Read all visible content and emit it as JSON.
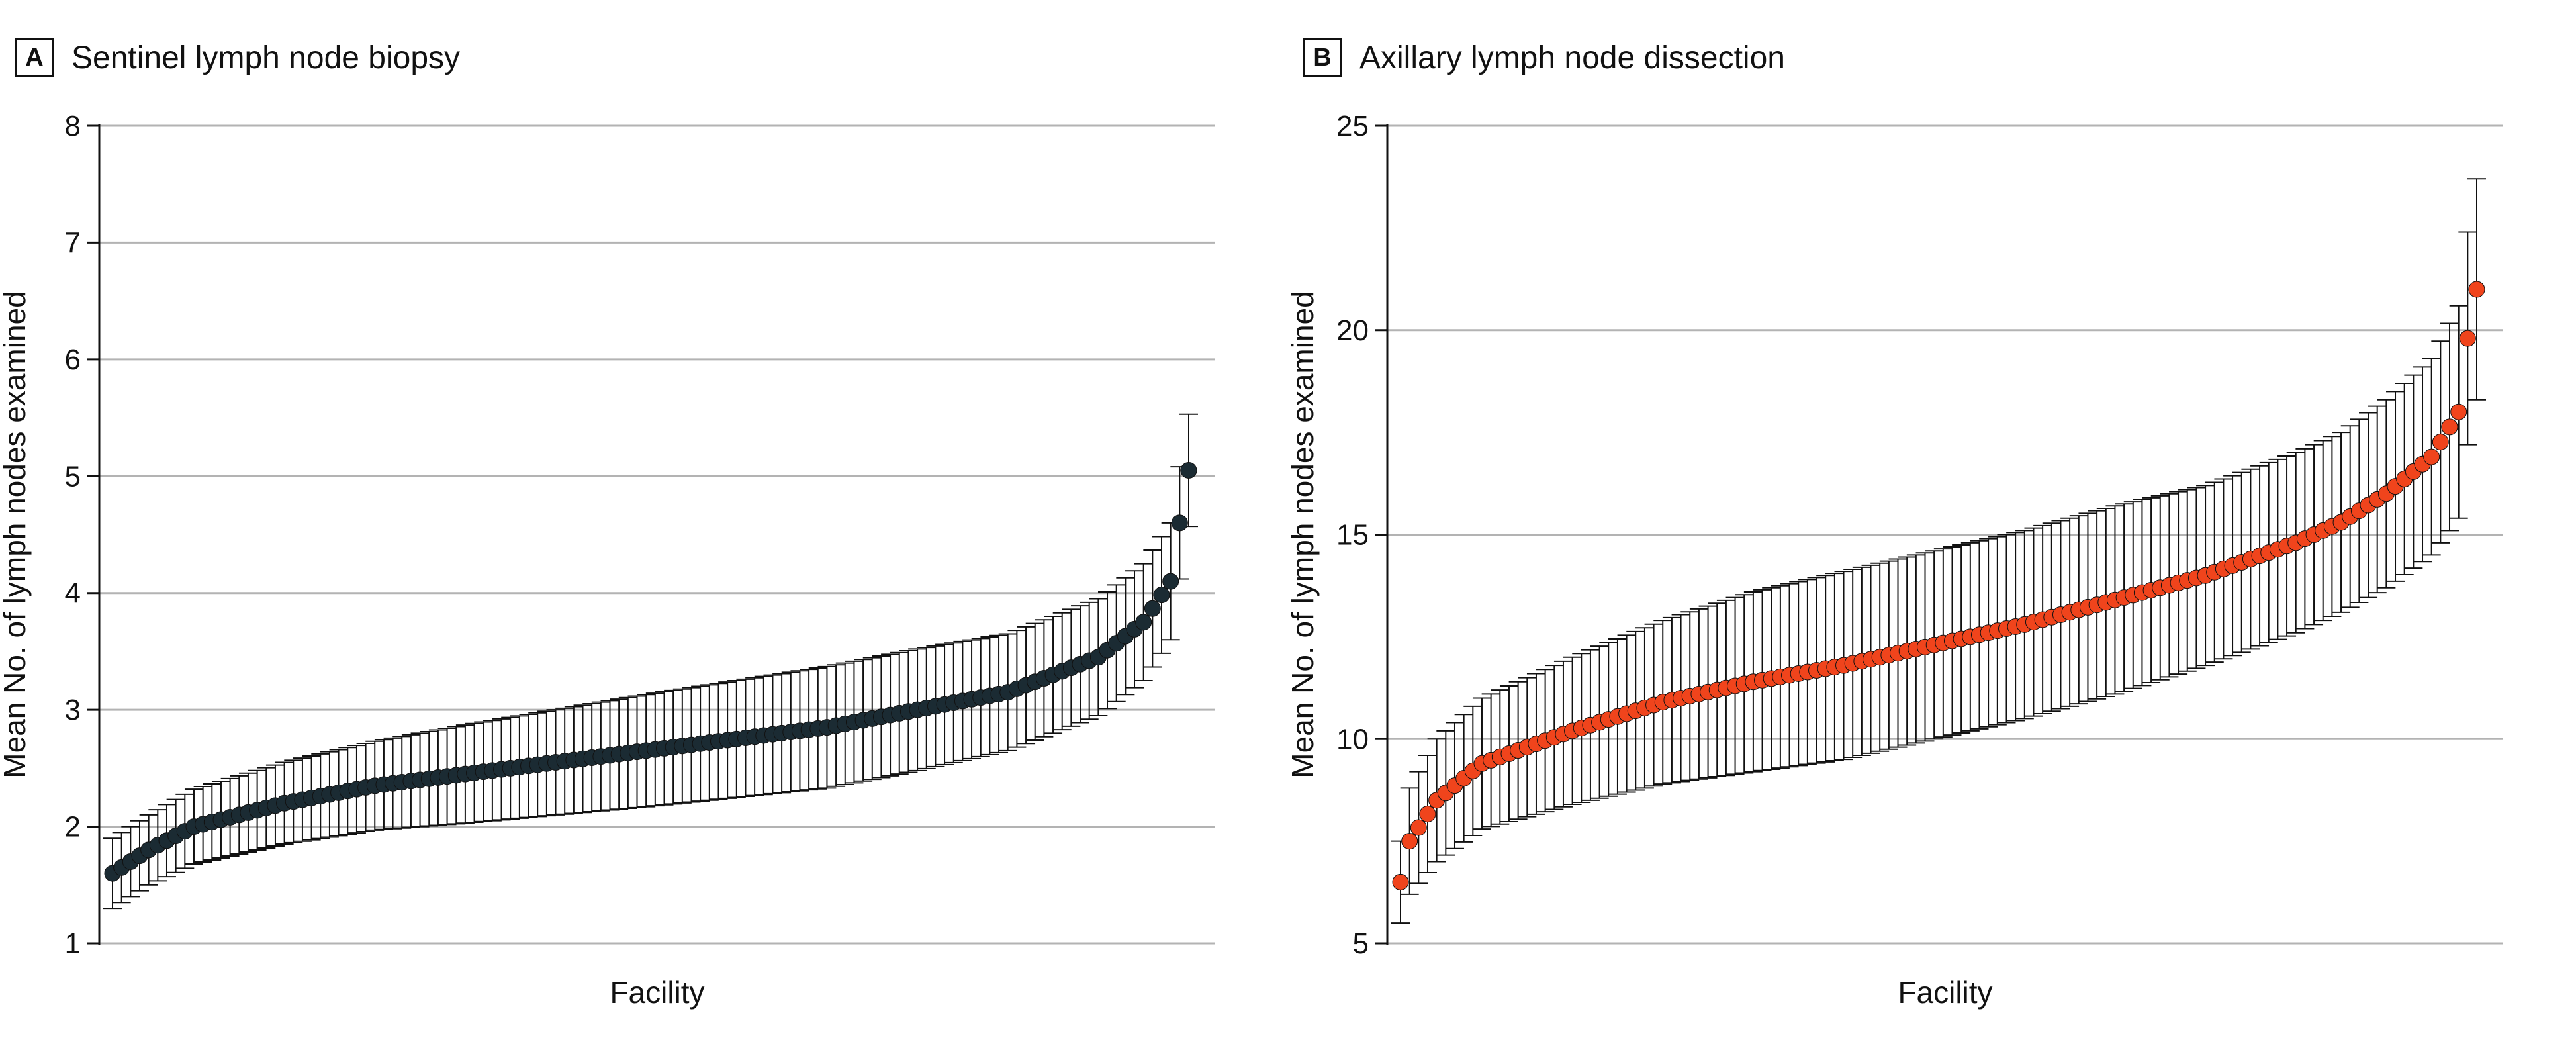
{
  "panels": [
    {
      "letter": "A",
      "title": "Sentinel lymph node biopsy",
      "color": "#1b2b33"
    },
    {
      "letter": "B",
      "title": "Axillary lymph node dissection",
      "color": "#f0441c"
    }
  ],
  "chart_data": [
    {
      "type": "scatter",
      "title": "Sentinel lymph node biopsy",
      "xlabel": "Facility",
      "ylabel": "Mean No. of lymph nodes examined",
      "ylim": [
        1,
        8
      ],
      "yticks": [
        1,
        2,
        3,
        4,
        5,
        6,
        7,
        8
      ],
      "grid": true,
      "marker_color": "#1b2b33",
      "error_bars": true,
      "n_points": 120,
      "series": [
        {
          "x": [
            1,
            5,
            10,
            20,
            30,
            40,
            50,
            60,
            70,
            80,
            90,
            100,
            110,
            115,
            118,
            119,
            120
          ],
          "y": [
            1.6,
            1.8,
            2.0,
            2.2,
            2.35,
            2.45,
            2.55,
            2.65,
            2.75,
            2.85,
            3.0,
            3.15,
            3.45,
            3.75,
            4.1,
            4.6,
            5.05
          ],
          "ci_halfwidth": [
            0.3,
            0.3,
            0.32,
            0.35,
            0.38,
            0.42,
            0.45,
            0.48,
            0.5,
            0.52,
            0.52,
            0.5,
            0.5,
            0.5,
            0.5,
            0.48,
            0.48
          ]
        }
      ]
    },
    {
      "type": "scatter",
      "title": "Axillary lymph node dissection",
      "xlabel": "Facility",
      "ylabel": "Mean No. of lymph nodes examined",
      "ylim": [
        5,
        25
      ],
      "yticks": [
        5,
        10,
        15,
        20,
        25
      ],
      "grid": true,
      "marker_color": "#f0441c",
      "error_bars": true,
      "n_points": 120,
      "series": [
        {
          "x": [
            1,
            2,
            5,
            10,
            20,
            30,
            40,
            50,
            60,
            70,
            80,
            90,
            100,
            105,
            110,
            115,
            118,
            119,
            120
          ],
          "y": [
            6.5,
            7.5,
            8.5,
            9.4,
            10.2,
            10.9,
            11.4,
            11.8,
            12.3,
            12.8,
            13.4,
            14.0,
            14.8,
            15.3,
            16.0,
            16.9,
            18.0,
            19.8,
            21.0
          ],
          "ci_halfwidth": [
            1.0,
            1.3,
            1.5,
            1.6,
            1.8,
            2.0,
            2.2,
            2.3,
            2.3,
            2.3,
            2.3,
            2.2,
            2.2,
            2.2,
            2.3,
            2.4,
            2.6,
            2.6,
            2.7
          ]
        }
      ]
    }
  ]
}
